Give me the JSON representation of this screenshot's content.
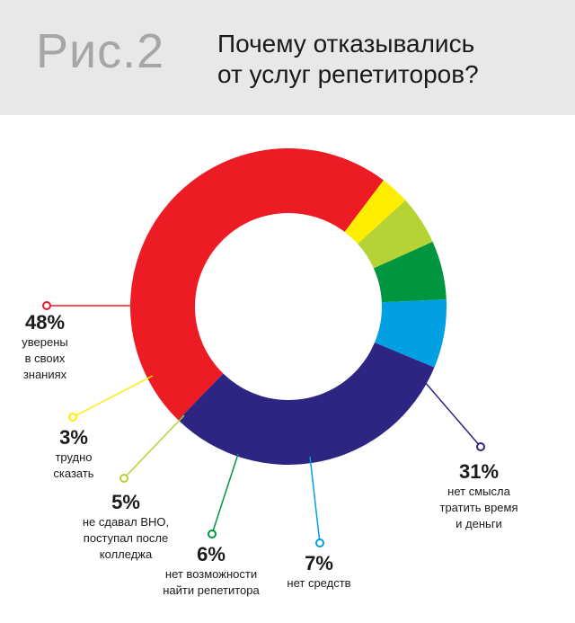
{
  "header": {
    "fig_label": "Рис.2",
    "title_line1": "Почему  отказывались",
    "title_line2": "от услуг репетиторов?"
  },
  "chart_data": {
    "type": "pie",
    "donut": true,
    "title": "Почему  отказывались от услуг репетиторов?",
    "slices": [
      {
        "label": "уверены в своих знаниях",
        "value": 48,
        "pct_text": "48%",
        "desc": "уверены\nв своих\nзнаниях",
        "color": "#ed1c24"
      },
      {
        "label": "нет смысла тратить время и деньги",
        "value": 31,
        "pct_text": "31%",
        "desc": "нет смысла\nтратить время\nи деньги",
        "color": "#2e2482"
      },
      {
        "label": "нет средств",
        "value": 7,
        "pct_text": "7%",
        "desc": "нет средств",
        "color": "#00a0e3"
      },
      {
        "label": "нет возможности найти репетитора",
        "value": 6,
        "pct_text": "6%",
        "desc": "нет возможности\nнайти репетитора",
        "color": "#009640"
      },
      {
        "label": "не сдавал ВНО, поступал после колледжа",
        "value": 5,
        "pct_text": "5%",
        "desc": "не сдавал ВНО,\nпоступал после\nколледжа",
        "color": "#b5d334"
      },
      {
        "label": "трудно сказать",
        "value": 3,
        "pct_text": "3%",
        "desc": "трудно\nсказать",
        "color": "#ffed00"
      }
    ]
  }
}
